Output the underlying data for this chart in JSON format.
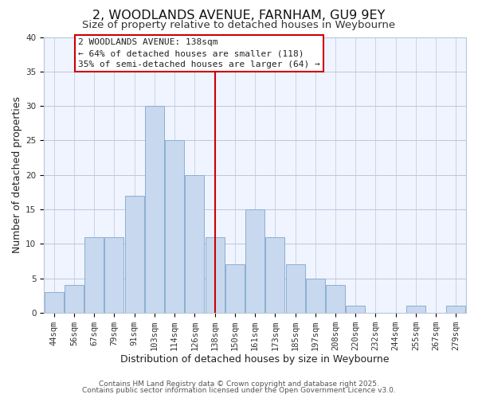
{
  "title": "2, WOODLANDS AVENUE, FARNHAM, GU9 9EY",
  "subtitle": "Size of property relative to detached houses in Weybourne",
  "xlabel": "Distribution of detached houses by size in Weybourne",
  "ylabel": "Number of detached properties",
  "bar_labels": [
    "44sqm",
    "56sqm",
    "67sqm",
    "79sqm",
    "91sqm",
    "103sqm",
    "114sqm",
    "126sqm",
    "138sqm",
    "150sqm",
    "161sqm",
    "173sqm",
    "185sqm",
    "197sqm",
    "208sqm",
    "220sqm",
    "232sqm",
    "244sqm",
    "255sqm",
    "267sqm",
    "279sqm"
  ],
  "bar_values": [
    3,
    4,
    11,
    11,
    17,
    30,
    25,
    20,
    11,
    7,
    15,
    11,
    7,
    5,
    4,
    1,
    0,
    0,
    1,
    0,
    1
  ],
  "bar_color": "#c8d8ee",
  "bar_edge_color": "#8ab0d0",
  "vline_x": 8,
  "vline_color": "#cc0000",
  "ylim": [
    0,
    40
  ],
  "yticks": [
    0,
    5,
    10,
    15,
    20,
    25,
    30,
    35,
    40
  ],
  "annotation_title": "2 WOODLANDS AVENUE: 138sqm",
  "annotation_line1": "← 64% of detached houses are smaller (118)",
  "annotation_line2": "35% of semi-detached houses are larger (64) →",
  "footnote1": "Contains HM Land Registry data © Crown copyright and database right 2025.",
  "footnote2": "Contains public sector information licensed under the Open Government Licence v3.0.",
  "background_color": "#ffffff",
  "plot_bg_color": "#f0f4ff",
  "grid_color": "#b8c8dc",
  "title_fontsize": 11.5,
  "subtitle_fontsize": 9.5,
  "axis_label_fontsize": 9,
  "tick_fontsize": 7.5,
  "annotation_fontsize": 8,
  "footnote_fontsize": 6.5
}
